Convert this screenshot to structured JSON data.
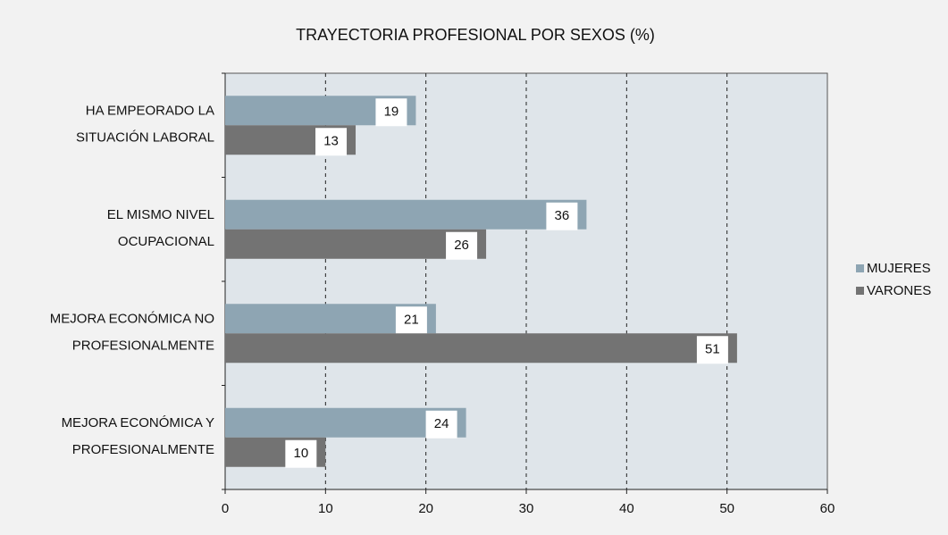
{
  "chart_data": {
    "type": "bar",
    "orientation": "horizontal",
    "title": "TRAYECTORIA PROFESIONAL POR SEXOS (%)",
    "categories": [
      [
        "HA EMPEORADO LA",
        "SITUACIÓN LABORAL"
      ],
      [
        "EL MISMO NIVEL",
        "OCUPACIONAL"
      ],
      [
        "MEJORA ECONÓMICA NO",
        "PROFESIONALMENTE"
      ],
      [
        "MEJORA ECONÓMICA Y",
        "PROFESIONALMENTE"
      ]
    ],
    "series": [
      {
        "name": "MUJERES",
        "color": "#8ea5b3",
        "values": [
          19,
          36,
          21,
          24
        ]
      },
      {
        "name": "VARONES",
        "color": "#737373",
        "values": [
          13,
          26,
          51,
          10
        ]
      }
    ],
    "xlim": [
      0,
      60
    ],
    "xticks": [
      0,
      10,
      20,
      30,
      40,
      50,
      60
    ],
    "grid": true,
    "legend": "right"
  }
}
